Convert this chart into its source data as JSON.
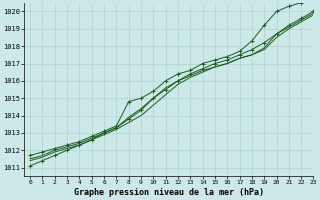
{
  "xlabel": "Graphe pression niveau de la mer (hPa)",
  "xlim": [
    -0.5,
    23
  ],
  "ylim": [
    1010.5,
    1020.5
  ],
  "yticks": [
    1011,
    1012,
    1013,
    1014,
    1015,
    1016,
    1017,
    1018,
    1019,
    1020
  ],
  "xticks": [
    0,
    1,
    2,
    3,
    4,
    5,
    6,
    7,
    8,
    9,
    10,
    11,
    12,
    13,
    14,
    15,
    16,
    17,
    18,
    19,
    20,
    21,
    22,
    23
  ],
  "bg_color": "#cce8e8",
  "grid_color": "#aacccc",
  "line_color": "#1a5c1a",
  "lines": [
    [
      1011.7,
      1011.9,
      1012.1,
      1012.3,
      1012.5,
      1012.8,
      1013.1,
      1013.4,
      1014.8,
      1015.0,
      1015.4,
      1016.0,
      1016.4,
      1016.6,
      1017.0,
      1017.2,
      1017.4,
      1017.7,
      1018.3,
      1019.2,
      1020.0,
      1020.3,
      1020.5,
      1020.7
    ],
    [
      1011.5,
      1011.7,
      1012.0,
      1012.2,
      1012.4,
      1012.7,
      1013.0,
      1013.3,
      1013.9,
      1014.4,
      1015.0,
      1015.6,
      1016.0,
      1016.3,
      1016.6,
      1016.8,
      1017.0,
      1017.3,
      1017.5,
      1017.9,
      1018.7,
      1019.1,
      1019.5,
      1019.9
    ],
    [
      1011.4,
      1011.6,
      1011.9,
      1012.1,
      1012.3,
      1012.6,
      1012.9,
      1013.2,
      1013.6,
      1014.0,
      1014.6,
      1015.2,
      1015.8,
      1016.2,
      1016.5,
      1016.8,
      1017.0,
      1017.3,
      1017.5,
      1017.8,
      1018.5,
      1019.0,
      1019.4,
      1019.8
    ],
    [
      1011.1,
      1011.4,
      1011.7,
      1012.0,
      1012.3,
      1012.6,
      1013.0,
      1013.3,
      1013.8,
      1014.3,
      1015.0,
      1015.5,
      1016.0,
      1016.4,
      1016.7,
      1017.0,
      1017.2,
      1017.5,
      1017.8,
      1018.2,
      1018.7,
      1019.2,
      1019.6,
      1020.0
    ]
  ],
  "marker_lines": [
    0,
    1,
    2,
    3
  ],
  "figsize": [
    3.2,
    2.0
  ],
  "dpi": 100
}
